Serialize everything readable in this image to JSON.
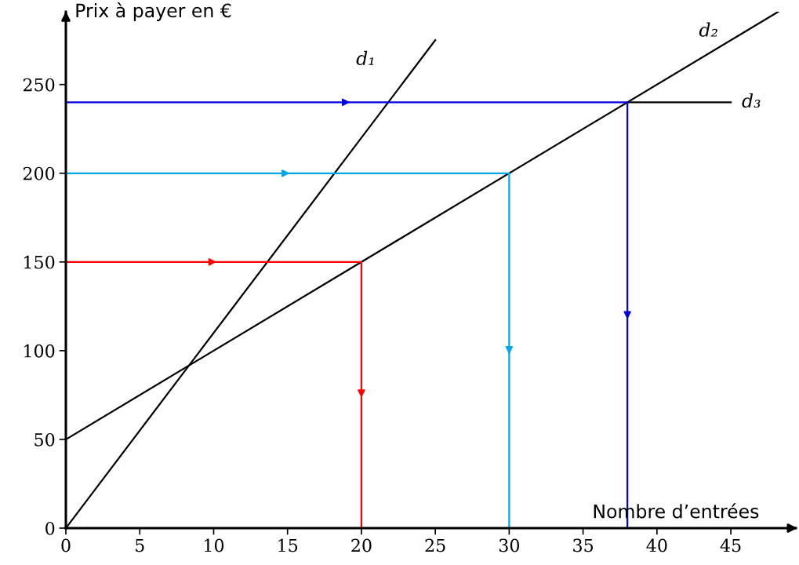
{
  "chart_data": {
    "type": "line",
    "xlabel": "Nombre d’entrées",
    "ylabel": "Prix à payer en €",
    "xlim": [
      0,
      49.4
    ],
    "ylim": [
      0,
      291
    ],
    "xticks": [
      0,
      5,
      10,
      15,
      20,
      25,
      30,
      35,
      40,
      45
    ],
    "yticks": [
      0,
      50,
      100,
      150,
      200,
      250
    ],
    "grid": false,
    "legend": false,
    "marker": "none",
    "line_style": "solid",
    "series": [
      {
        "name": "d₁",
        "color": "#000000",
        "x": [
          0,
          25
        ],
        "values": [
          0,
          275
        ]
      },
      {
        "name": "d₂",
        "color": "#000000",
        "x": [
          0,
          48.2
        ],
        "values": [
          50,
          291
        ]
      },
      {
        "name": "d₃",
        "color": "#000000",
        "x": [
          38,
          45
        ],
        "values": [
          240,
          240
        ]
      },
      {
        "color": "#ff0000",
        "x": [
          0,
          20,
          20
        ],
        "values": [
          150,
          150,
          0
        ]
      },
      {
        "color": "#00a8e8",
        "x": [
          0,
          30,
          30
        ],
        "values": [
          200,
          200,
          0
        ]
      },
      {
        "color": "#0000e0",
        "x": [
          0,
          38,
          38
        ],
        "values": [
          240,
          240,
          0
        ]
      }
    ]
  }
}
